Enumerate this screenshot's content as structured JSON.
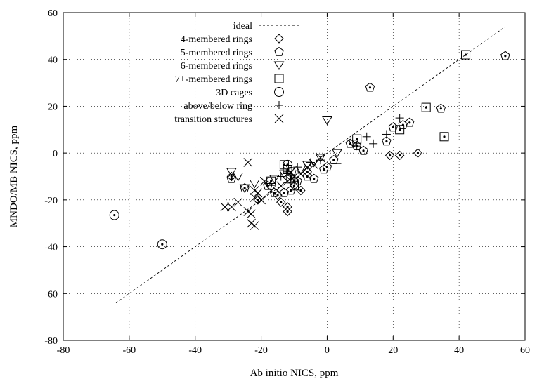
{
  "chart_data": {
    "type": "scatter",
    "xlabel": "Ab initio NICS, ppm",
    "ylabel": "MNDO/MB NICS, ppm",
    "xlim": [
      -80,
      60
    ],
    "ylim": [
      -80,
      60
    ],
    "xticks": [
      "-80",
      "-60",
      "-40",
      "-20",
      "0",
      "20",
      "40",
      "60"
    ],
    "yticks": [
      "-80",
      "-60",
      "-40",
      "-20",
      "0",
      "20",
      "40",
      "60"
    ],
    "grid": true,
    "legend_position": "top-left",
    "ideal": {
      "name": "ideal",
      "x": [
        -64,
        54
      ],
      "y": [
        -64,
        54
      ]
    },
    "series": [
      {
        "name": "4-membered rings",
        "marker": "diamond",
        "dot": true,
        "points": [
          [
            -29,
            -10
          ],
          [
            -21,
            -20
          ],
          [
            -15,
            -18
          ],
          [
            -14,
            -21
          ],
          [
            -12,
            -23
          ],
          [
            -12,
            -25
          ],
          [
            -10,
            -14
          ],
          [
            -8,
            -16
          ],
          [
            -11,
            -10
          ],
          [
            -6,
            -8
          ],
          [
            19,
            -1
          ],
          [
            22,
            -1
          ],
          [
            27.5,
            0
          ]
        ]
      },
      {
        "name": "5-membered rings",
        "marker": "pentagon",
        "dot": true,
        "points": [
          [
            -29,
            -11
          ],
          [
            -25,
            -15
          ],
          [
            -18,
            -14
          ],
          [
            -16,
            -17
          ],
          [
            -13,
            -17
          ],
          [
            -11,
            -16
          ],
          [
            -10,
            -12
          ],
          [
            -9,
            -12
          ],
          [
            -6,
            -10
          ],
          [
            -4,
            -11
          ],
          [
            -1,
            -7
          ],
          [
            0,
            -6
          ],
          [
            2,
            -3
          ],
          [
            7,
            4
          ],
          [
            9,
            3
          ],
          [
            11,
            1
          ],
          [
            13,
            28
          ],
          [
            18,
            5
          ],
          [
            20,
            11
          ],
          [
            23,
            12
          ],
          [
            25,
            13
          ],
          [
            34.5,
            19
          ],
          [
            54,
            41.5
          ]
        ]
      },
      {
        "name": "6-membered rings",
        "marker": "triangle-down",
        "dot": false,
        "points": [
          [
            -29,
            -8
          ],
          [
            -27,
            -10
          ],
          [
            -25,
            -15
          ],
          [
            -22,
            -13
          ],
          [
            -18,
            -13
          ],
          [
            -16,
            -11
          ],
          [
            -13,
            -9
          ],
          [
            -11,
            -7
          ],
          [
            -8,
            -7
          ],
          [
            -6,
            -5
          ],
          [
            -4,
            -4
          ],
          [
            -2,
            -2
          ],
          [
            0,
            14
          ],
          [
            3,
            0
          ],
          [
            8,
            4
          ]
        ]
      },
      {
        "name": "7+-membered rings",
        "marker": "square",
        "dot": true,
        "points": [
          [
            -17,
            -12
          ],
          [
            -13,
            -5
          ],
          [
            -12,
            -7
          ],
          [
            -11,
            -11
          ],
          [
            -10,
            -14
          ],
          [
            9,
            6
          ],
          [
            22,
            10
          ],
          [
            30,
            19.5
          ],
          [
            35.5,
            7
          ],
          [
            42,
            42
          ]
        ]
      },
      {
        "name": "3D cages",
        "marker": "circle",
        "dot": true,
        "points": [
          [
            -64.5,
            -26.5
          ],
          [
            -50,
            -39
          ],
          [
            -12,
            -5
          ],
          [
            -11,
            -8
          ]
        ]
      },
      {
        "name": "above/below ring",
        "marker": "plus",
        "dot": false,
        "points": [
          [
            -17,
            -13
          ],
          [
            -14,
            -10
          ],
          [
            -12,
            -8
          ],
          [
            -9,
            -6
          ],
          [
            -5,
            -4
          ],
          [
            -2,
            -3
          ],
          [
            3,
            -4.5
          ],
          [
            9,
            3
          ],
          [
            12,
            7
          ],
          [
            14,
            4
          ],
          [
            18,
            8
          ],
          [
            22,
            15
          ]
        ]
      },
      {
        "name": "transition structures",
        "marker": "x",
        "dot": false,
        "points": [
          [
            -31,
            -23
          ],
          [
            -29,
            -23
          ],
          [
            -27,
            -21
          ],
          [
            -24,
            -25
          ],
          [
            -23,
            -26
          ],
          [
            -22,
            -19
          ],
          [
            -22,
            -16
          ],
          [
            -20,
            -20
          ],
          [
            -24,
            -4
          ],
          [
            -23,
            -30
          ],
          [
            -22,
            -31
          ],
          [
            -21,
            -17
          ],
          [
            -19,
            -12
          ],
          [
            -17,
            -16
          ],
          [
            -14,
            -14
          ],
          [
            -12,
            -12
          ],
          [
            -10,
            -10
          ],
          [
            -8,
            -9
          ],
          [
            -6,
            -6
          ],
          [
            -4,
            -5
          ],
          [
            -2,
            -2
          ]
        ]
      }
    ]
  }
}
